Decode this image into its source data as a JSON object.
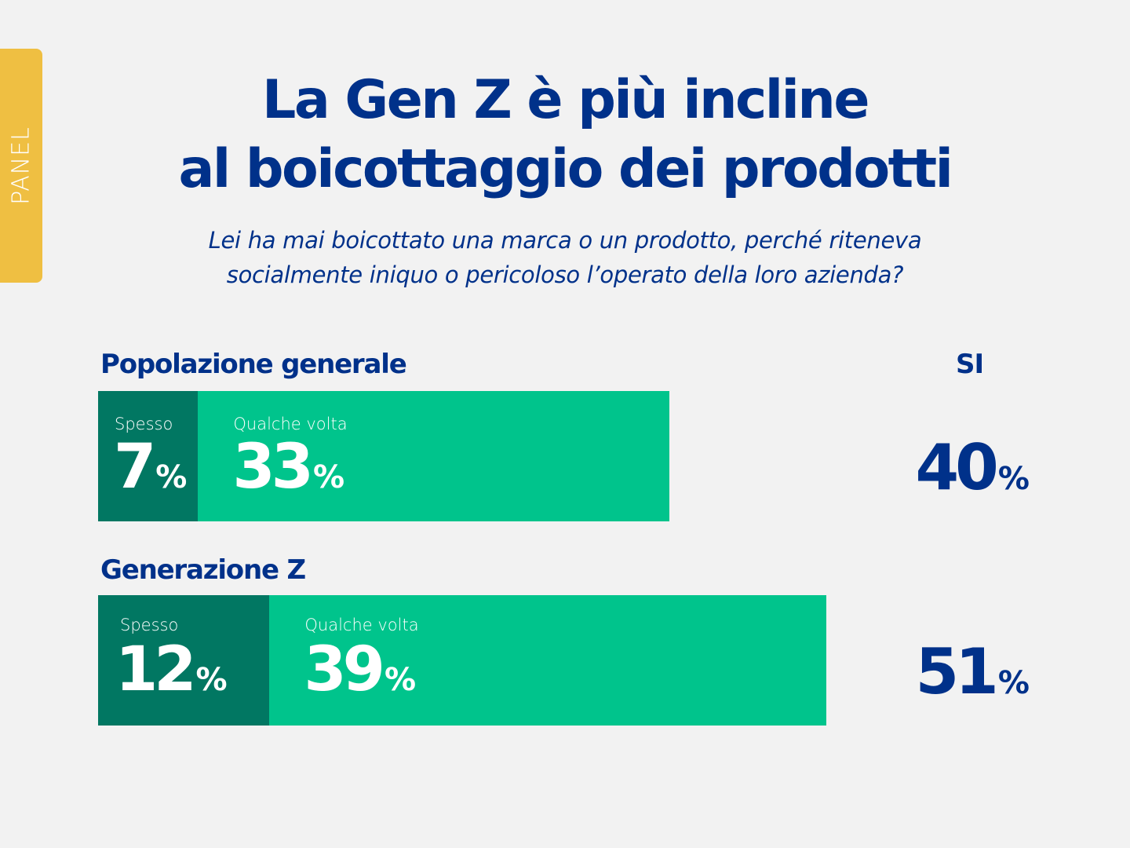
{
  "panel_tab": "PANEL",
  "title": [
    "La Gen Z è più incline",
    "al boicottaggio dei prodotti"
  ],
  "subtitle": [
    "Lei ha mai boicottato una marca o un prodotto, perché riteneva",
    "socialmente iniquo o pericoloso l’operato della loro azienda?"
  ],
  "colors": {
    "title": "#00318a",
    "spesso": "#017762",
    "qualche_volta": "#00c48c",
    "tab": "#efbf42",
    "background": "#f2f2f2"
  },
  "chart_data": {
    "type": "bar",
    "orientation": "horizontal",
    "stacked": true,
    "title": "La Gen Z è più incline al boicottaggio dei prodotti",
    "subtitle": "Lei ha mai boicottato una marca o un prodotto, perché riteneva socialmente iniquo o pericoloso l’operato della loro azienda?",
    "categories": [
      "Popolazione generale",
      "Generazione Z"
    ],
    "series": [
      {
        "name": "Spesso",
        "values": [
          7,
          12
        ]
      },
      {
        "name": "Qualche volta",
        "values": [
          33,
          39
        ]
      }
    ],
    "totals_label": "SI",
    "totals": [
      40,
      51
    ],
    "unit": "%",
    "xlim": [
      0,
      60
    ]
  }
}
